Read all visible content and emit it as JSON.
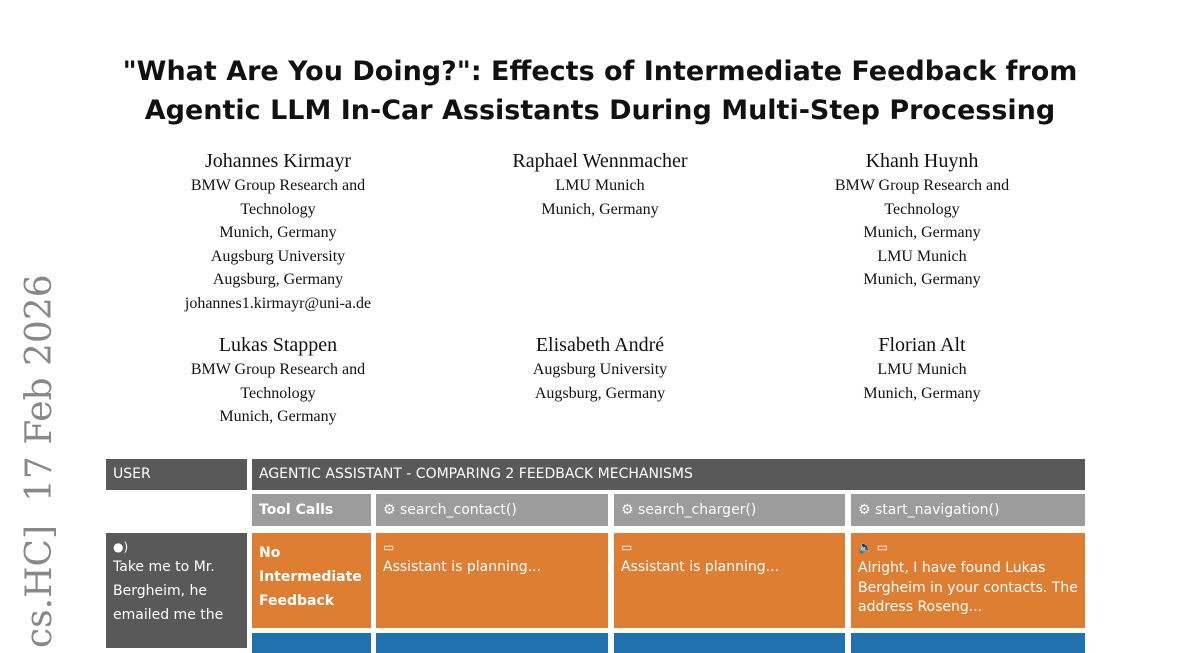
{
  "paper": {
    "title_lines": [
      "\"What Are You Doing?\": Effects of Intermediate Feedback from",
      "Agentic LLM In-Car Assistants During Multi-Step Processing"
    ],
    "arxiv_stamp": "cs.HC]  17 Feb 2026",
    "authors": [
      {
        "name": "Johannes Kirmayr",
        "lines": [
          "BMW Group Research and",
          "Technology",
          "Munich, Germany",
          "Augsburg University",
          "Augsburg, Germany",
          "johannes1.kirmayr@uni-a.de"
        ]
      },
      {
        "name": "Raphael Wennmacher",
        "lines": [
          "LMU Munich",
          "Munich, Germany"
        ]
      },
      {
        "name": "Khanh Huynh",
        "lines": [
          "BMW Group Research and",
          "Technology",
          "Munich, Germany",
          "LMU Munich",
          "Munich, Germany"
        ]
      },
      {
        "name": "Lukas Stappen",
        "lines": [
          "BMW Group Research and",
          "Technology",
          "Munich, Germany"
        ]
      },
      {
        "name": "Elisabeth André",
        "lines": [
          "Augsburg University",
          "Augsburg, Germany"
        ]
      },
      {
        "name": "Florian Alt",
        "lines": [
          "LMU Munich",
          "Munich, Germany"
        ]
      }
    ]
  },
  "figure": {
    "user_header": "USER",
    "assistant_header": "AGENTIC ASSISTANT - COMPARING 2 FEEDBACK MECHANISMS",
    "tool_calls_label": "Tool Calls",
    "tools": [
      "search_contact()",
      "search_charger()",
      "start_navigation()"
    ],
    "user_utterance": "Take me to Mr. Bergheim, he emailed me the",
    "row_no_feedback": {
      "label": "No Intermediate Feedback",
      "cells": [
        "Assistant is planning...",
        "Assistant is planning...",
        "Alright, I have found Lukas Bergheim in your contacts. The address Roseng..."
      ]
    },
    "colors": {
      "dark": "#595959",
      "grey": "#9c9c9c",
      "orange": "#de7e33",
      "blue": "#1f72ad"
    }
  }
}
